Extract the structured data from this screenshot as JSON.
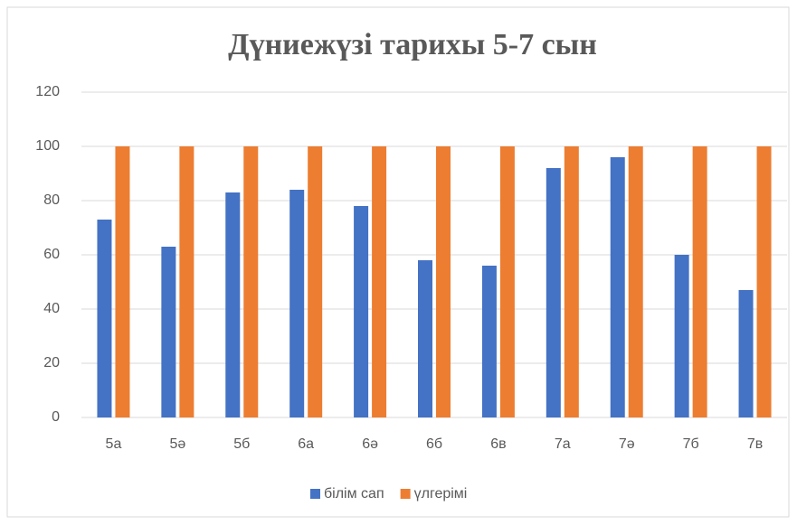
{
  "chart_data": {
    "type": "bar",
    "title": "Дүниежүзі тарихы 5-7 сын",
    "categories": [
      "5а",
      "5ә",
      "5б",
      "6а",
      "6ә",
      "6б",
      "6в",
      "7а",
      "7ә",
      "7б",
      "7в"
    ],
    "series": [
      {
        "name": "білім сап",
        "color": "#4472c4",
        "values": [
          73,
          63,
          83,
          84,
          78,
          58,
          56,
          92,
          96,
          60,
          47
        ]
      },
      {
        "name": "үлгерімі",
        "color": "#ed7d31",
        "values": [
          100,
          100,
          100,
          100,
          100,
          100,
          100,
          100,
          100,
          100,
          100
        ]
      }
    ],
    "ylim": [
      0,
      120
    ],
    "yticks": [
      0,
      20,
      40,
      60,
      80,
      100,
      120
    ],
    "grid": true,
    "legend": "bottom"
  }
}
